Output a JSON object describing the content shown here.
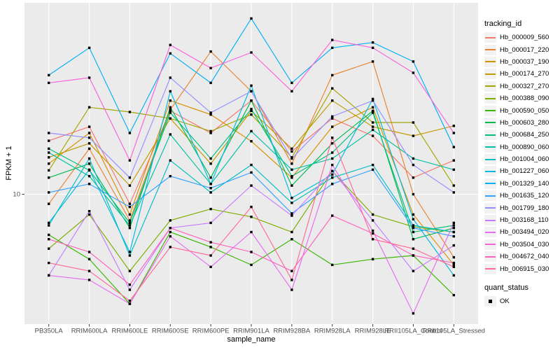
{
  "chart_data": {
    "type": "line",
    "title": "",
    "xlabel": "sample_name",
    "ylabel": "FPKM + 1",
    "y_scale": "log10",
    "ylim": [
      2.4,
      82
    ],
    "yticks": [
      {
        "value": 10,
        "label": "10"
      }
    ],
    "grid": "vertical major per category + horizontal major at 10, no minors",
    "legend_title": "tracking_id",
    "legend_position": "right",
    "quant_legend": {
      "title": "quant_status",
      "items": [
        {
          "label": "OK",
          "shape": "black-square"
        }
      ]
    },
    "marker": {
      "shape": "square",
      "color": "#000000",
      "size": 3.4
    },
    "colors": {
      "panel": "#EBEBEB",
      "grid": "#FFFFFF",
      "tick": "#333333",
      "tick_label": "#4D4D4D",
      "background": "#FFFFFF"
    },
    "categories": [
      "PB350LA",
      "RRIM600LA",
      "RRIM600LE",
      "RRIM600SE",
      "RRIM600PE",
      "RRIM901LA",
      "RRIM928BA",
      "RRIM928LA",
      "RRIM928LE",
      "RRII105LA_Control",
      "RRII105LA_Stressed"
    ],
    "series": [
      {
        "name": "Hb_000009_560",
        "color": "#F8766D",
        "values": [
          18,
          21,
          9,
          25,
          19.6,
          28,
          16,
          23,
          19,
          12,
          14.5
        ]
      },
      {
        "name": "Hb_000017_220",
        "color": "#EA8331",
        "values": [
          9,
          16.5,
          7.5,
          25.3,
          48,
          31,
          14,
          37,
          43,
          10,
          5
        ]
      },
      {
        "name": "Hb_000037_190",
        "color": "#D89000",
        "values": [
          14,
          19.6,
          8,
          28,
          24,
          17.9,
          12,
          21,
          26,
          8,
          4.6
        ]
      },
      {
        "name": "Hb_000174_270",
        "color": "#C09B00",
        "values": [
          15,
          17.5,
          11,
          23,
          14,
          25,
          16.5,
          28,
          21,
          19,
          21.2
        ]
      },
      {
        "name": "Hb_000327_270",
        "color": "#A3A500",
        "values": [
          13,
          26,
          24.7,
          23,
          20,
          24,
          15,
          32,
          22,
          22,
          11
        ]
      },
      {
        "name": "Hb_000388_090",
        "color": "#7CAE00",
        "values": [
          5.5,
          8,
          4.3,
          7.5,
          8.5,
          7.8,
          6.6,
          12.9,
          8,
          7,
          6.6
        ]
      },
      {
        "name": "Hb_000590_050",
        "color": "#39B600",
        "values": [
          6.4,
          4.9,
          3.0,
          6.6,
          5.6,
          4.6,
          6.1,
          4.6,
          4.9,
          5.1,
          3.3
        ]
      },
      {
        "name": "Hb_000603_280",
        "color": "#00BB4E",
        "values": [
          12,
          14,
          6.9,
          26,
          12,
          28,
          11,
          17.5,
          25,
          6.1,
          6.9
        ]
      },
      {
        "name": "Hb_000684_250",
        "color": "#00BF7D",
        "values": [
          16.5,
          13,
          7.3,
          24.5,
          14.8,
          25.5,
          12.2,
          15.8,
          24.5,
          6.6,
          7.1
        ]
      },
      {
        "name": "Hb_000890_060",
        "color": "#00C1A3",
        "values": [
          15.8,
          12.2,
          7.1,
          19.3,
          11.2,
          20,
          13.1,
          14.8,
          20.3,
          14.8,
          13.1
        ]
      },
      {
        "name": "Hb_001004_060",
        "color": "#00BFC4",
        "values": [
          7.1,
          14.8,
          5.1,
          14.5,
          10.2,
          13.8,
          9.1,
          12,
          13.8,
          7.1,
          6.6
        ]
      },
      {
        "name": "Hb_001227_060",
        "color": "#00BAE0",
        "values": [
          7.3,
          13.1,
          5.3,
          31,
          11.2,
          33,
          9.6,
          12.4,
          28.5,
          7.6,
          4.1
        ]
      },
      {
        "name": "Hb_001329_140",
        "color": "#00B0F6",
        "values": [
          37,
          50,
          19.6,
          47,
          34,
          69,
          34,
          50,
          53,
          43,
          16.8
        ]
      },
      {
        "name": "Hb_001635_120",
        "color": "#35A2FF",
        "values": [
          10.2,
          11.2,
          8.7,
          12.2,
          10.7,
          12.7,
          8.1,
          11.2,
          13.1,
          6.9,
          6.3
        ]
      },
      {
        "name": "Hb_001799_180",
        "color": "#9590FF",
        "values": [
          19.6,
          18.6,
          12,
          36,
          24.5,
          31,
          14.8,
          23.5,
          28,
          13.8,
          10.2
        ]
      },
      {
        "name": "Hb_003168_110",
        "color": "#C77CFF",
        "values": [
          4.1,
          8.3,
          3.5,
          6.9,
          7.3,
          11,
          7.9,
          12.9,
          7.5,
          4.3,
          5.7
        ]
      },
      {
        "name": "Hb_003494_020",
        "color": "#E76BF3",
        "values": [
          4.1,
          3.9,
          3.0,
          6.3,
          4.5,
          6.6,
          3.5,
          13.8,
          6.7,
          2.7,
          7.3
        ]
      },
      {
        "name": "Hb_003504_030",
        "color": "#FA62DB",
        "values": [
          34,
          36,
          14.5,
          51.6,
          40,
          47.5,
          31,
          54.5,
          50,
          38,
          19.6
        ]
      },
      {
        "name": "Hb_004672_040",
        "color": "#FF62BC",
        "values": [
          6.1,
          5.3,
          3.7,
          6.9,
          5.9,
          5.3,
          4.3,
          7.9,
          6.5,
          5.1,
          4.7
        ]
      },
      {
        "name": "Hb_006915_030",
        "color": "#FF6A98",
        "values": [
          4.7,
          4.3,
          3.1,
          5.6,
          5.1,
          8.7,
          3.9,
          18.6,
          6.1,
          5.5,
          4.5
        ]
      }
    ]
  }
}
